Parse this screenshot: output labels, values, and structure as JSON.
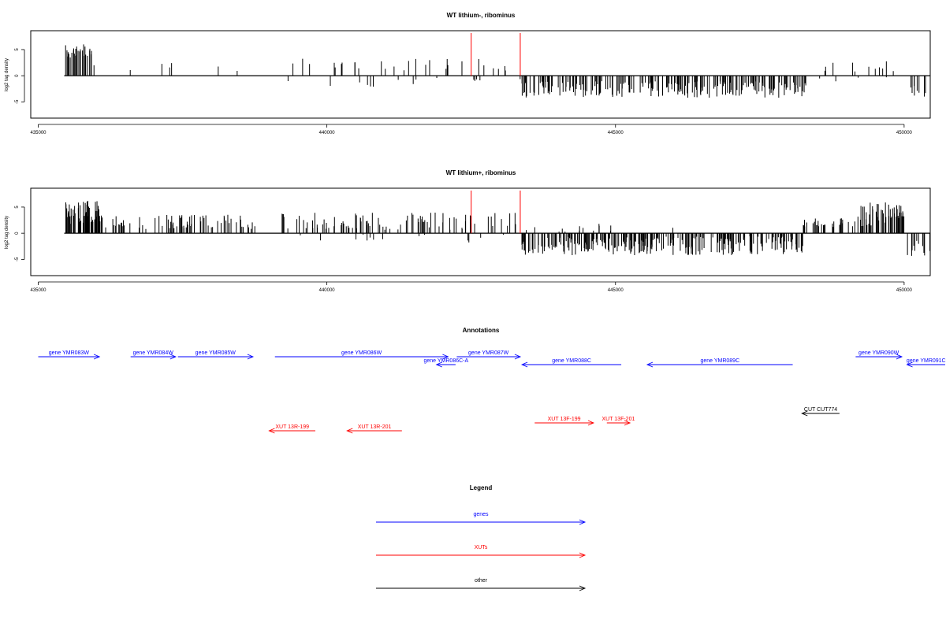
{
  "chart_data": [
    {
      "type": "bar",
      "title": "WT lithium-, ribominus",
      "ylabel": "log2 tag density",
      "xlim": [
        435000,
        450500
      ],
      "ylim": [
        -7.5,
        8
      ],
      "x_ticks": [
        "435000",
        "440000",
        "445000",
        "450000"
      ],
      "y_ticks": [
        "5",
        "0",
        "-5"
      ],
      "markers": [
        442500,
        443350
      ],
      "marker_color": "#ff0000",
      "series": [
        {
          "segments": [
            {
              "x": [
                435450,
                435950
              ],
              "base": 4.6,
              "var": 1.6,
              "density": 0.28,
              "sign": 1
            },
            {
              "x": [
                435950,
                439000
              ],
              "base": 1.8,
              "var": 0.9,
              "density": 0.008,
              "sign": 1
            },
            {
              "x": [
                439200,
                442400
              ],
              "base": 2.2,
              "var": 1.2,
              "density": 0.022,
              "sign": 1
            },
            {
              "x": [
                439200,
                442400
              ],
              "base": -1.2,
              "var": 1.0,
              "density": 0.012,
              "sign": -1
            },
            {
              "x": [
                442400,
                443350
              ],
              "base": 2.0,
              "var": 1.3,
              "density": 0.022,
              "sign": 1
            },
            {
              "x": [
                442400,
                443350
              ],
              "base": -0.9,
              "var": 0.8,
              "density": 0.008,
              "sign": -1
            },
            {
              "x": [
                443380,
                448300
              ],
              "base": -2.6,
              "var": 1.6,
              "density": 0.16,
              "sign": -1
            },
            {
              "x": [
                448500,
                450000
              ],
              "base": 1.8,
              "var": 1.0,
              "density": 0.03,
              "sign": 1
            },
            {
              "x": [
                448500,
                450000
              ],
              "base": -0.8,
              "var": 0.6,
              "density": 0.01,
              "sign": -1
            },
            {
              "x": [
                450050,
                450450
              ],
              "base": -2.6,
              "var": 1.4,
              "density": 0.05,
              "sign": -1
            }
          ]
        }
      ]
    },
    {
      "type": "bar",
      "title": "WT lithium+, ribominus",
      "ylabel": "log2 tag density",
      "xlim": [
        435000,
        450500
      ],
      "ylim": [
        -7.5,
        8
      ],
      "x_ticks": [
        "435000",
        "440000",
        "445000",
        "450000"
      ],
      "y_ticks": [
        "5",
        "0",
        "-5"
      ],
      "markers": [
        442500,
        443350
      ],
      "marker_color": "#ff0000",
      "series": [
        {
          "segments": [
            {
              "x": [
                435450,
                436100
              ],
              "base": 4.0,
              "var": 2.2,
              "density": 0.28,
              "sign": 1
            },
            {
              "x": [
                436100,
                438850
              ],
              "base": 2.2,
              "var": 1.4,
              "density": 0.11,
              "sign": 1
            },
            {
              "x": [
                439200,
                443350
              ],
              "base": 2.3,
              "var": 1.7,
              "density": 0.09,
              "sign": 1
            },
            {
              "x": [
                439200,
                443350
              ],
              "base": -1.0,
              "var": 0.9,
              "density": 0.012,
              "sign": -1
            },
            {
              "x": [
                443350,
                448250
              ],
              "base": -2.4,
              "var": 1.8,
              "density": 0.2,
              "sign": -1
            },
            {
              "x": [
                443350,
                446000
              ],
              "base": 0.8,
              "var": 1.0,
              "density": 0.01,
              "sign": 1
            },
            {
              "x": [
                448250,
                449200
              ],
              "base": 1.9,
              "var": 1.0,
              "density": 0.12,
              "sign": 1
            },
            {
              "x": [
                449200,
                450000
              ],
              "base": 3.6,
              "var": 2.4,
              "density": 0.22,
              "sign": 1
            },
            {
              "x": [
                450050,
                450450
              ],
              "base": -2.8,
              "var": 1.6,
              "density": 0.08,
              "sign": -1
            }
          ]
        }
      ]
    }
  ],
  "annotations": {
    "title": "Annotations",
    "xlim": [
      435000,
      450500
    ],
    "features": [
      {
        "label": "gene YMR083W",
        "start": 435000,
        "end": 436060,
        "row": 0,
        "strand": "+",
        "color": "#0000ff"
      },
      {
        "label": "gene YMR084W",
        "start": 436600,
        "end": 437380,
        "row": 0,
        "strand": "+",
        "color": "#0000ff"
      },
      {
        "label": "gene YMR085W",
        "start": 437420,
        "end": 438720,
        "row": 0,
        "strand": "+",
        "color": "#0000ff"
      },
      {
        "label": "gene YMR086W",
        "start": 439100,
        "end": 442100,
        "row": 0,
        "strand": "+",
        "color": "#0000ff"
      },
      {
        "label": "gene YMR086C-A",
        "start": 441900,
        "end": 442230,
        "row": 1,
        "strand": "-",
        "color": "#0000ff"
      },
      {
        "label": "gene YMR087W",
        "start": 442250,
        "end": 443350,
        "row": 0,
        "strand": "+",
        "color": "#0000ff"
      },
      {
        "label": "gene YMR088C",
        "start": 443380,
        "end": 445100,
        "row": 1,
        "strand": "-",
        "color": "#0000ff"
      },
      {
        "label": "gene YMR089C",
        "start": 445550,
        "end": 448070,
        "row": 1,
        "strand": "-",
        "color": "#0000ff"
      },
      {
        "label": "gene YMR090W",
        "start": 449160,
        "end": 449960,
        "row": 0,
        "strand": "+",
        "color": "#0000ff"
      },
      {
        "label": "gene YMR091C",
        "start": 450050,
        "end": 451200,
        "row": 1,
        "strand": "-",
        "color": "#0000ff"
      },
      {
        "label": "CUT CUT774",
        "start": 448230,
        "end": 448880,
        "row": 2,
        "strand": "-",
        "color": "#000000"
      },
      {
        "label": "XUT 13F-199",
        "start": 443600,
        "end": 444620,
        "row": 3,
        "strand": "+",
        "color": "#ff0000"
      },
      {
        "label": "XUT 13F-201",
        "start": 444850,
        "end": 445250,
        "row": 3,
        "strand": "+",
        "color": "#ff0000"
      },
      {
        "label": "XUT 13R-199",
        "start": 439000,
        "end": 439800,
        "row": 4,
        "strand": "-",
        "color": "#ff0000"
      },
      {
        "label": "XUT 13R-201",
        "start": 440350,
        "end": 441300,
        "row": 4,
        "strand": "-",
        "color": "#ff0000"
      }
    ]
  },
  "legend": {
    "title": "Legend",
    "items": [
      {
        "label": "genes",
        "color": "#0000ff"
      },
      {
        "label": "XUTs",
        "color": "#ff0000"
      },
      {
        "label": "other",
        "color": "#000000"
      }
    ]
  }
}
